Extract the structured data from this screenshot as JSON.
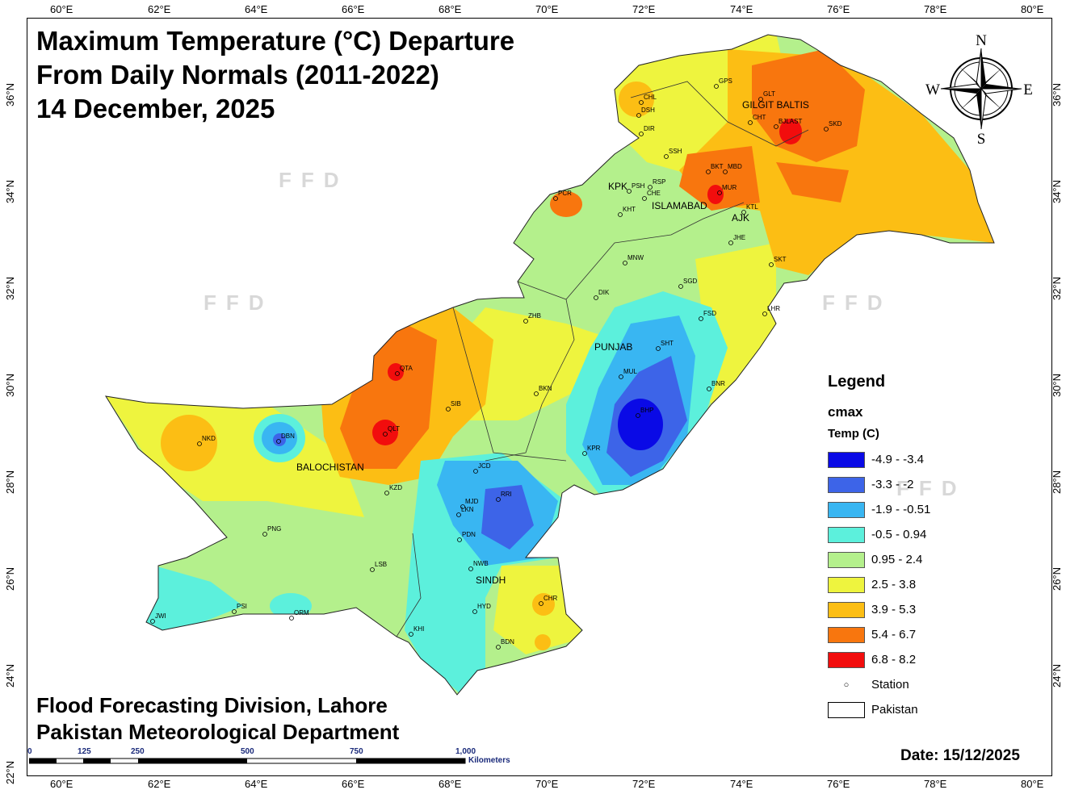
{
  "title": {
    "line1": "Maximum Temperature (°C) Departure",
    "line2": "From Daily Normals (2011-2022)",
    "line3": "14 December, 2025"
  },
  "credits": {
    "line1": "Flood Forecasting Division, Lahore",
    "line2": "Pakistan Meteorological Department"
  },
  "date_label": "Date: 15/12/2025",
  "watermark": "FFD",
  "axes": {
    "lon_labels": [
      "60°E",
      "62°E",
      "64°E",
      "66°E",
      "68°E",
      "70°E",
      "72°E",
      "74°E",
      "76°E",
      "78°E",
      "80°E"
    ],
    "lat_labels": [
      "36°N",
      "34°N",
      "32°N",
      "30°N",
      "28°N",
      "26°N",
      "24°N",
      "22°N"
    ]
  },
  "legend": {
    "title": "Legend",
    "field": "cmax",
    "subtitle": "Temp (C)",
    "classes": [
      {
        "label": "-4.9 - -3.4",
        "color": "#0a0ae6"
      },
      {
        "label": "-3.3 - -2",
        "color": "#3d64e8"
      },
      {
        "label": "-1.9 - -0.51",
        "color": "#39b6f2"
      },
      {
        "label": "-0.5 - 0.94",
        "color": "#5cf0dc"
      },
      {
        "label": "0.95 - 2.4",
        "color": "#b4f08c"
      },
      {
        "label": "2.5 - 3.8",
        "color": "#eef43e"
      },
      {
        "label": "3.9 - 5.3",
        "color": "#fcbe14"
      },
      {
        "label": "5.4 - 6.7",
        "color": "#f8760e"
      },
      {
        "label": "6.8 - 8.2",
        "color": "#f20d0d"
      }
    ],
    "station_label": "Station",
    "pakistan_label": "Pakistan"
  },
  "compass": {
    "n": "N",
    "s": "S",
    "e": "E",
    "w": "W"
  },
  "scalebar": {
    "ticks": [
      "0",
      "125",
      "250",
      "500",
      "750",
      "1,000"
    ],
    "unit": "Kilometers"
  },
  "regions": [
    "GILGIT BALTIS",
    "KPK",
    "ISLAMABAD",
    "AJK",
    "PUNJAB",
    "BALOCHISTAN",
    "SINDH"
  ],
  "stations": [
    "GPS",
    "GLT",
    "CHL",
    "DSH",
    "CHT",
    "BJLAST",
    "SKD",
    "DIR",
    "SSH",
    "BKT",
    "MBD",
    "PCR",
    "PSH",
    "RSP",
    "CHE",
    "MUR",
    "KHT",
    "KTL",
    "JHE",
    "SKT",
    "MNW",
    "SGD",
    "DIK",
    "ZHB",
    "LHR",
    "FSD",
    "SHT",
    "QTA",
    "MUL",
    "BNR",
    "BKN",
    "SIB",
    "NKD",
    "DBN",
    "QLT",
    "BHP",
    "KPR",
    "JCD",
    "KZD",
    "RRI",
    "LKN",
    "MJD",
    "PDN",
    "PNG",
    "NWB",
    "LSB",
    "HYD",
    "CHR",
    "PSI",
    "ORM",
    "JWI",
    "KHI",
    "BDN"
  ]
}
